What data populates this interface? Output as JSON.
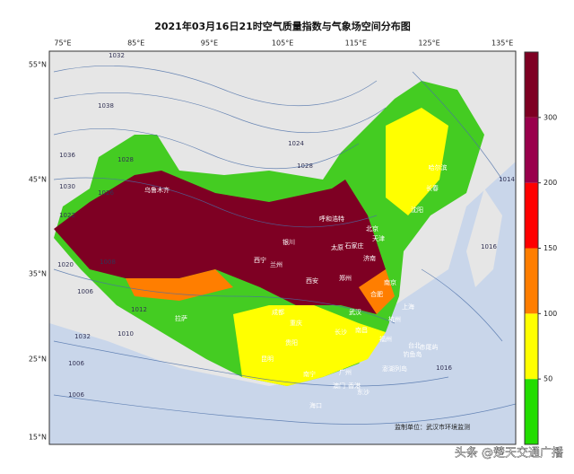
{
  "title": "2021年03月16日21时空气质量指数与气象场空间分布图",
  "lon_labels": [
    "75°E",
    "85°E",
    "95°E",
    "105°E",
    "115°E",
    "125°E",
    "135°E"
  ],
  "lat_labels": [
    "55°N",
    "45°N",
    "35°N",
    "25°N",
    "15°N"
  ],
  "colorbar": {
    "ticks": [
      50,
      100,
      150,
      200,
      300
    ],
    "colors": [
      "#22dd00",
      "#ffff00",
      "#ff7e00",
      "#ff0000",
      "#99004c",
      "#7e0023"
    ]
  },
  "cities": [
    "乌鲁木齐",
    "哈尔滨",
    "长春",
    "沈阳",
    "呼和浩特",
    "北京",
    "天津",
    "石家庄",
    "太原",
    "济南",
    "银川",
    "西宁",
    "兰州",
    "西安",
    "郑州",
    "南京",
    "合肥",
    "上海",
    "杭州",
    "武汉",
    "成都",
    "重庆",
    "拉萨",
    "长沙",
    "南昌",
    "贵阳",
    "昆明",
    "福州",
    "台北",
    "赤尾屿",
    "钓鱼岛",
    "澎湖列岛",
    "广州",
    "南宁",
    "香港",
    "澳门",
    "海口",
    "东沙"
  ],
  "isobars": [
    "1032",
    "1038",
    "1036",
    "1030",
    "1028",
    "1026",
    "1022",
    "1020",
    "1008",
    "1006",
    "1012",
    "1010",
    "1032",
    "1024",
    "1028",
    "1016",
    "1014",
    "1006",
    "1006",
    "1016"
  ],
  "footer": "监制单位：武汉市环境监测",
  "watermark": "头条 @楚天交通广播"
}
